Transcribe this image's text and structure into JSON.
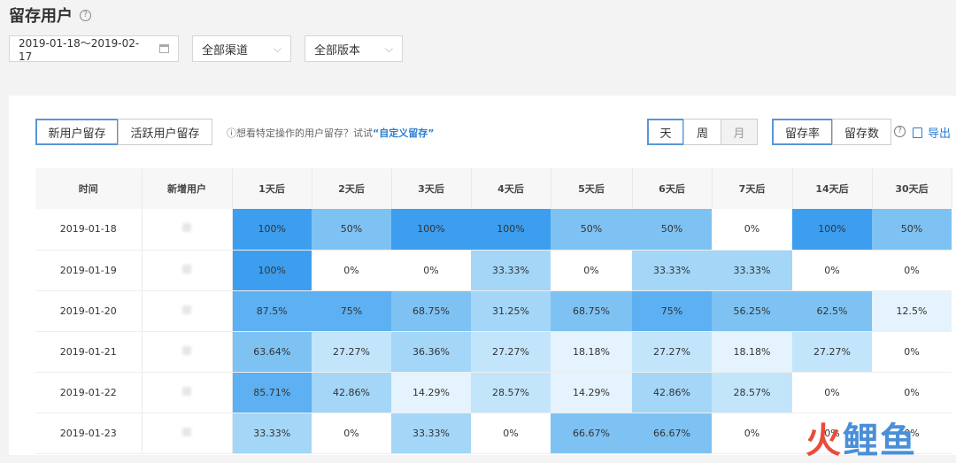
{
  "header": {
    "title": "留存用户",
    "help_icon": "?"
  },
  "filters": {
    "date_range": "2019-01-18～2019-02-17",
    "channel": "全部渠道",
    "version": "全部版本"
  },
  "toolbar": {
    "tabs": [
      {
        "label": "新用户留存",
        "active": true
      },
      {
        "label": "活跃用户留存",
        "active": false
      }
    ],
    "hint_prefix": "ⓘ想看特定操作的用户留存？试试",
    "hint_link": "“自定义留存”",
    "period": [
      {
        "label": "天",
        "active": true
      },
      {
        "label": "周",
        "active": false
      },
      {
        "label": "月",
        "active": false
      }
    ],
    "metric": [
      {
        "label": "留存率",
        "active": true
      },
      {
        "label": "留存数",
        "active": false
      }
    ],
    "export_label": "导出"
  },
  "table": {
    "columns": [
      "时间",
      "新增用户",
      "1天后",
      "2天后",
      "3天后",
      "4天后",
      "5天后",
      "6天后",
      "7天后",
      "14天后",
      "30天后"
    ],
    "rows": [
      {
        "date": "2019-01-18",
        "cells": [
          "100%",
          "50%",
          "100%",
          "100%",
          "50%",
          "50%",
          "0%",
          "100%",
          "50%"
        ]
      },
      {
        "date": "2019-01-19",
        "cells": [
          "100%",
          "0%",
          "0%",
          "33.33%",
          "0%",
          "33.33%",
          "33.33%",
          "0%",
          "0%"
        ]
      },
      {
        "date": "2019-01-20",
        "cells": [
          "87.5%",
          "75%",
          "68.75%",
          "31.25%",
          "68.75%",
          "75%",
          "56.25%",
          "62.5%",
          "12.5%"
        ]
      },
      {
        "date": "2019-01-21",
        "cells": [
          "63.64%",
          "27.27%",
          "36.36%",
          "27.27%",
          "18.18%",
          "27.27%",
          "18.18%",
          "27.27%",
          "0%"
        ]
      },
      {
        "date": "2019-01-22",
        "cells": [
          "85.71%",
          "42.86%",
          "14.29%",
          "28.57%",
          "14.29%",
          "42.86%",
          "28.57%",
          "0%",
          "0%"
        ]
      },
      {
        "date": "2019-01-23",
        "cells": [
          "33.33%",
          "0%",
          "33.33%",
          "0%",
          "66.67%",
          "66.67%",
          "0%",
          "0%",
          "0%"
        ]
      }
    ]
  },
  "heat_colors": {
    "lvl0": "#ffffff",
    "lvl1": "#e4f3fd",
    "lvl2": "#c3e5fb",
    "lvl3": "#a4d6f8",
    "lvl4": "#7ec2f3",
    "lvl5": "#5db0f1",
    "lvl6": "#3d9ef0"
  },
  "watermark": {
    "fire": "火",
    "rest": "鲤鱼"
  }
}
